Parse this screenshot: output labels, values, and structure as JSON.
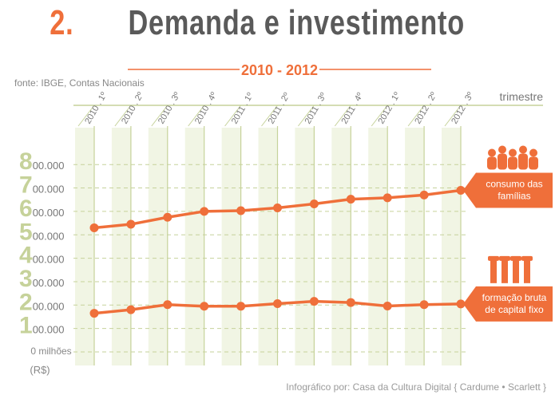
{
  "header": {
    "number": "2.",
    "title": "Demanda e investimento",
    "period": "2010 - 2012",
    "source": "fonte: IBGE, Contas Nacionais"
  },
  "credit": "Infográfico por: Casa da Cultura Digital { Cardume • Scarlett }",
  "colors": {
    "accent": "#ef6f3a",
    "green": "#c6d29a",
    "band": "#f1f5e4",
    "text": "#666666"
  },
  "chart_data": {
    "type": "line",
    "xlabel": "trimestre",
    "ylabel_top": "0 milhões",
    "ylabel_unit": "(R$)",
    "ylim": [
      0,
      800000
    ],
    "yticks": [
      {
        "big": "1",
        "small": "00.000",
        "value": 100000
      },
      {
        "big": "2",
        "small": "00.000",
        "value": 200000
      },
      {
        "big": "3",
        "small": "00.000",
        "value": 300000
      },
      {
        "big": "4",
        "small": "00.000",
        "value": 400000
      },
      {
        "big": "5",
        "small": "00.000",
        "value": 500000
      },
      {
        "big": "6",
        "small": "00.000",
        "value": 600000
      },
      {
        "big": "7",
        "small": "00.000",
        "value": 700000
      },
      {
        "big": "8",
        "small": "00.000",
        "value": 800000
      }
    ],
    "categories": [
      "2010 . 1º",
      "2010 . 2º",
      "2010 . 3º",
      "2010 . 4º",
      "2011 . 1º",
      "2011 . 2º",
      "2011 . 3º",
      "2011 . 4º",
      "2012 . 1º",
      "2012 . 2º",
      "2012 . 3º"
    ],
    "series": [
      {
        "name": "consumo das famílias",
        "label_lines": [
          "consumo das",
          "famílias"
        ],
        "icon": "family-icon",
        "values": [
          530000,
          545000,
          575000,
          600000,
          603000,
          615000,
          632000,
          652000,
          658000,
          670000,
          690000
        ]
      },
      {
        "name": "formação bruta de capital fixo",
        "label_lines": [
          "formação bruta",
          "de capital fixo"
        ],
        "icon": "construction-icon",
        "values": [
          165000,
          180000,
          202000,
          195000,
          195000,
          206000,
          216000,
          211000,
          196000,
          202000,
          205000
        ]
      }
    ]
  }
}
